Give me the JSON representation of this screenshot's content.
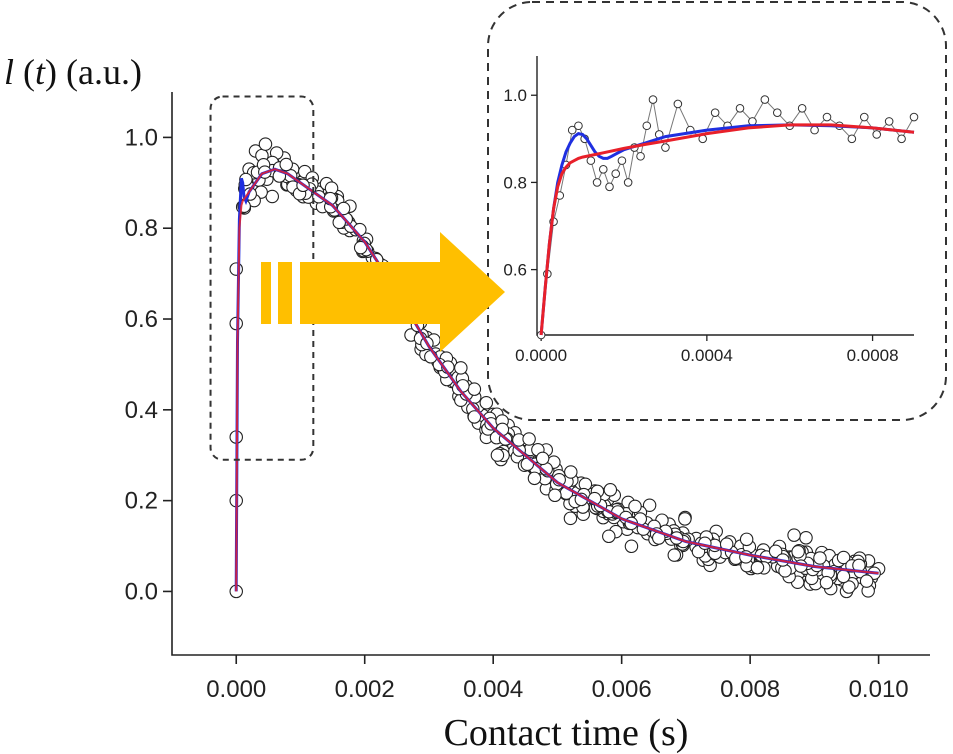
{
  "chart_data": [
    {
      "type": "scatter",
      "title": "",
      "xlabel": "Contact time (s)",
      "ylabel": {
        "var": "l",
        "arg": "t",
        "unit": "(a.u.)"
      },
      "xlim": [
        -0.001,
        0.0108
      ],
      "ylim": [
        -0.14,
        1.1
      ],
      "xticks": [
        0.0,
        0.002,
        0.004,
        0.006,
        0.008,
        0.01
      ],
      "xtick_labels": [
        "0.000",
        "0.002",
        "0.004",
        "0.006",
        "0.008",
        "0.010"
      ],
      "yticks": [
        0.0,
        0.2,
        0.4,
        0.6,
        0.8,
        1.0
      ],
      "ytick_labels": [
        "0.0",
        "0.2",
        "0.4",
        "0.6",
        "0.8",
        "1.0"
      ],
      "grid": false,
      "series": [
        {
          "style": "open-circle markers",
          "color": "#333333",
          "model": "measured points scattered around the fitted curve, 0 to 0.010 s",
          "x_range": [
            0.0,
            0.01
          ],
          "points_shown": [
            [
              0.0,
              0.0
            ],
            [
              0.0,
              0.2
            ],
            [
              0.0,
              0.34
            ],
            [
              0.0,
              0.59
            ],
            [
              0.0,
              0.71
            ],
            [
              0.0002,
              0.93
            ],
            [
              0.0003,
              0.97
            ],
            [
              0.0004,
              0.96
            ],
            [
              0.0008,
              0.93
            ],
            [
              0.002,
              0.77
            ],
            [
              0.004,
              0.39
            ],
            [
              0.006,
              0.16
            ],
            [
              0.008,
              0.08
            ],
            [
              0.0095,
              0.0
            ],
            [
              0.01,
              0.05
            ]
          ]
        },
        {
          "style": "line",
          "color": "#1f2fe0",
          "x": [
            0.0,
            2e-05,
            5e-05,
            8e-05,
            0.0001,
            0.00012,
            0.00015,
            0.0002,
            0.0003,
            0.0004,
            0.0006,
            0.0008,
            0.001,
            0.0015,
            0.002,
            0.0025,
            0.003,
            0.0035,
            0.004,
            0.005,
            0.006,
            0.007,
            0.008,
            0.009,
            0.01
          ],
          "y": [
            0.0,
            0.55,
            0.82,
            0.91,
            0.9,
            0.87,
            0.86,
            0.88,
            0.9,
            0.92,
            0.93,
            0.92,
            0.9,
            0.85,
            0.77,
            0.66,
            0.54,
            0.44,
            0.36,
            0.24,
            0.16,
            0.11,
            0.08,
            0.055,
            0.04
          ]
        },
        {
          "style": "line",
          "color": "#e8202a",
          "x": [
            0.0,
            2e-05,
            5e-05,
            8e-05,
            0.0001,
            0.00015,
            0.0002,
            0.0003,
            0.0004,
            0.0006,
            0.0008,
            0.001,
            0.0015,
            0.002,
            0.0025,
            0.003,
            0.0035,
            0.004,
            0.005,
            0.006,
            0.007,
            0.008,
            0.009,
            0.01
          ],
          "y": [
            0.0,
            0.55,
            0.8,
            0.85,
            0.86,
            0.87,
            0.88,
            0.9,
            0.92,
            0.93,
            0.92,
            0.9,
            0.85,
            0.77,
            0.66,
            0.54,
            0.44,
            0.36,
            0.24,
            0.16,
            0.11,
            0.08,
            0.055,
            0.04
          ]
        }
      ],
      "highlight_box": {
        "x": [
          -0.0004,
          0.0012
        ],
        "y": [
          0.29,
          1.09
        ],
        "style": "dashed rounded"
      },
      "arrow": {
        "color": "#ffbf00",
        "direction": "right"
      }
    },
    {
      "type": "scatter",
      "title": "",
      "role": "inset zoom",
      "xlim": [
        -1e-05,
        0.0009
      ],
      "ylim": [
        0.45,
        1.09
      ],
      "xticks": [
        0.0,
        0.0004,
        0.0008
      ],
      "xtick_labels": [
        "0.0000",
        "0.0004",
        "0.0008"
      ],
      "yticks": [
        0.6,
        0.8,
        1.0
      ],
      "ytick_labels": [
        "0.6",
        "0.8",
        "1.0"
      ],
      "series": [
        {
          "style": "open-circle markers joined by thin grey line",
          "color": "#555555",
          "x": [
            0.0,
            1.5e-05,
            3e-05,
            4.5e-05,
            6e-05,
            7.5e-05,
            9e-05,
            0.000105,
            0.00012,
            0.000135,
            0.00015,
            0.000165,
            0.00018,
            0.000195,
            0.00021,
            0.000225,
            0.00024,
            0.000255,
            0.00027,
            0.000285,
            0.0003,
            0.00033,
            0.00036,
            0.00039,
            0.00042,
            0.00045,
            0.00048,
            0.00051,
            0.00054,
            0.00057,
            0.0006,
            0.00063,
            0.00066,
            0.00069,
            0.00072,
            0.00075,
            0.00078,
            0.00081,
            0.00084,
            0.00087,
            0.0009
          ],
          "y": [
            0.45,
            0.59,
            0.71,
            0.77,
            0.84,
            0.92,
            0.93,
            0.9,
            0.85,
            0.8,
            0.83,
            0.79,
            0.82,
            0.85,
            0.8,
            0.88,
            0.86,
            0.93,
            0.99,
            0.91,
            0.88,
            0.98,
            0.92,
            0.9,
            0.96,
            0.93,
            0.97,
            0.94,
            0.99,
            0.96,
            0.93,
            0.97,
            0.92,
            0.95,
            0.93,
            0.9,
            0.95,
            0.91,
            0.94,
            0.9,
            0.95
          ]
        },
        {
          "style": "line",
          "color": "#1f2fe0",
          "x": [
            0.0,
            1e-05,
            2e-05,
            3e-05,
            4e-05,
            5e-05,
            6e-05,
            7e-05,
            8e-05,
            9e-05,
            0.0001,
            0.00011,
            0.00012,
            0.00013,
            0.00014,
            0.00015,
            0.00016,
            0.00017,
            0.00018,
            0.0002,
            0.00025,
            0.0003,
            0.0004,
            0.0005,
            0.0006,
            0.0007,
            0.0008,
            0.0009
          ],
          "y": [
            0.45,
            0.56,
            0.66,
            0.74,
            0.8,
            0.84,
            0.87,
            0.89,
            0.905,
            0.912,
            0.91,
            0.9,
            0.885,
            0.87,
            0.86,
            0.855,
            0.855,
            0.86,
            0.865,
            0.875,
            0.89,
            0.905,
            0.92,
            0.93,
            0.932,
            0.93,
            0.925,
            0.915
          ]
        },
        {
          "style": "line",
          "color": "#e8202a",
          "x": [
            0.0,
            1e-05,
            2e-05,
            3e-05,
            4e-05,
            5e-05,
            6e-05,
            7e-05,
            8e-05,
            9e-05,
            0.0001,
            0.00012,
            0.00015,
            0.0002,
            0.00025,
            0.0003,
            0.0004,
            0.0005,
            0.0006,
            0.0007,
            0.0008,
            0.0009
          ],
          "y": [
            0.45,
            0.56,
            0.66,
            0.74,
            0.79,
            0.82,
            0.835,
            0.845,
            0.85,
            0.855,
            0.858,
            0.862,
            0.868,
            0.878,
            0.887,
            0.895,
            0.912,
            0.925,
            0.932,
            0.932,
            0.925,
            0.915
          ]
        }
      ]
    }
  ]
}
